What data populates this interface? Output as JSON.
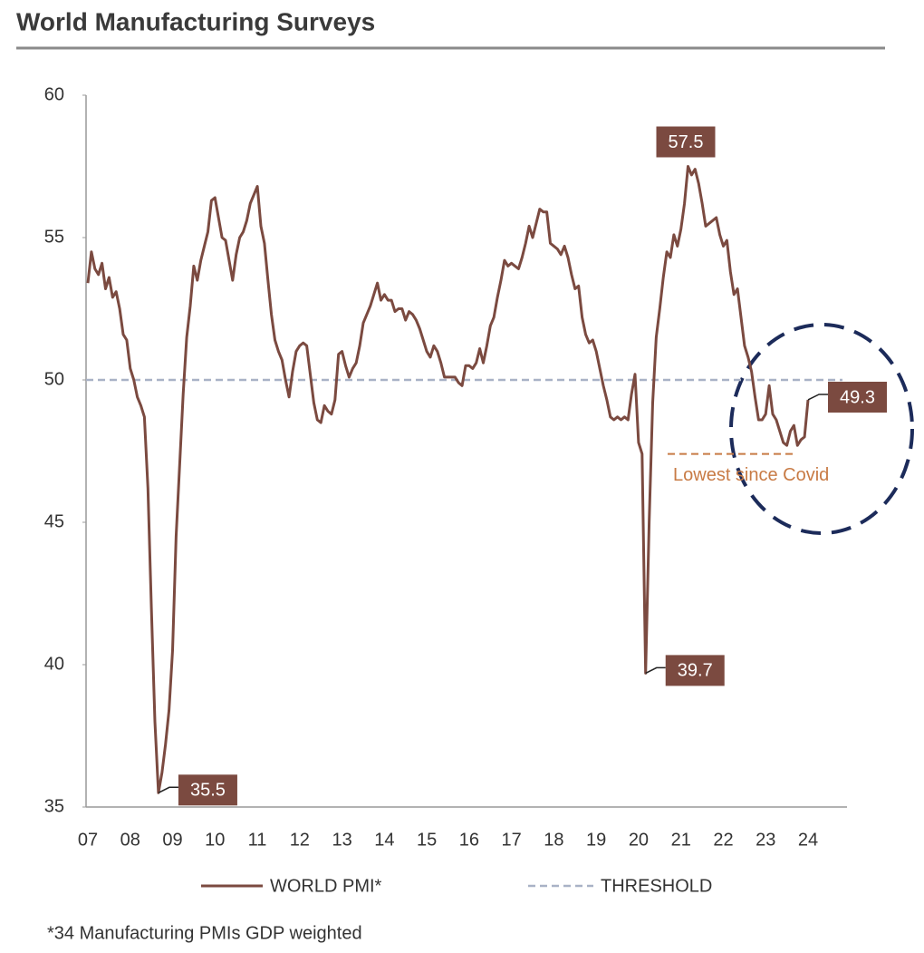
{
  "chart_data": {
    "type": "line",
    "title": "World Manufacturing Surveys",
    "footnote": "*34 Manufacturing PMIs GDP weighted",
    "categories": [
      "07",
      null,
      null,
      null,
      null,
      null,
      null,
      null,
      null,
      null,
      null,
      null,
      "08",
      null,
      null,
      null,
      null,
      null,
      null,
      null,
      null,
      null,
      null,
      null,
      "09",
      null,
      null,
      null,
      null,
      null,
      null,
      null,
      null,
      null,
      null,
      null,
      "10",
      null,
      null,
      null,
      null,
      null,
      null,
      null,
      null,
      null,
      null,
      null,
      "11",
      null,
      null,
      null,
      null,
      null,
      null,
      null,
      null,
      null,
      null,
      null,
      "12",
      null,
      null,
      null,
      null,
      null,
      null,
      null,
      null,
      null,
      null,
      null,
      "13",
      null,
      null,
      null,
      null,
      null,
      null,
      null,
      null,
      null,
      null,
      null,
      "14",
      null,
      null,
      null,
      null,
      null,
      null,
      null,
      null,
      null,
      null,
      null,
      "15",
      null,
      null,
      null,
      null,
      null,
      null,
      null,
      null,
      null,
      null,
      null,
      "16",
      null,
      null,
      null,
      null,
      null,
      null,
      null,
      null,
      null,
      null,
      null,
      "17",
      null,
      null,
      null,
      null,
      null,
      null,
      null,
      null,
      null,
      null,
      null,
      "18",
      null,
      null,
      null,
      null,
      null,
      null,
      null,
      null,
      null,
      null,
      null,
      "19",
      null,
      null,
      null,
      null,
      null,
      null,
      null,
      null,
      null,
      null,
      null,
      "20",
      null,
      null,
      null,
      null,
      null,
      null,
      null,
      null,
      null,
      null,
      null,
      "21",
      null,
      null,
      null,
      null,
      null,
      null,
      null,
      null,
      null,
      null,
      null,
      "22",
      null,
      null,
      null,
      null,
      null,
      null,
      null,
      null,
      null,
      null,
      null,
      "23",
      null,
      null,
      null,
      null,
      null,
      null,
      null,
      null,
      null,
      null,
      null,
      "24"
    ],
    "series": [
      {
        "name": "WORLD PMI*",
        "color": "#7b4a40",
        "values": [
          53.4,
          54.5,
          53.9,
          53.7,
          54.1,
          53.2,
          53.6,
          52.9,
          53.1,
          52.5,
          51.6,
          51.4,
          50.4,
          50.0,
          49.4,
          49.1,
          48.7,
          46.2,
          42.0,
          38.0,
          35.5,
          36.2,
          37.2,
          38.4,
          40.5,
          44.5,
          47.0,
          49.5,
          51.5,
          52.6,
          54.0,
          53.5,
          54.2,
          54.7,
          55.2,
          56.3,
          56.4,
          55.7,
          55.0,
          54.9,
          54.2,
          53.5,
          54.4,
          55.0,
          55.2,
          55.6,
          56.2,
          56.5,
          56.8,
          55.4,
          54.8,
          53.5,
          52.3,
          51.4,
          51.0,
          50.7,
          50.0,
          49.4,
          50.3,
          51.0,
          51.2,
          51.3,
          51.2,
          50.2,
          49.2,
          48.6,
          48.5,
          49.1,
          48.9,
          48.8,
          49.3,
          50.9,
          51.0,
          50.5,
          50.1,
          50.4,
          50.6,
          51.2,
          52.0,
          52.3,
          52.6,
          53.0,
          53.4,
          52.8,
          53.0,
          52.8,
          52.8,
          52.4,
          52.5,
          52.5,
          52.1,
          52.4,
          52.3,
          52.1,
          51.8,
          51.4,
          51.0,
          50.8,
          51.2,
          51.0,
          50.6,
          50.1,
          50.1,
          50.1,
          50.1,
          49.9,
          49.8,
          50.5,
          50.5,
          50.4,
          50.6,
          51.1,
          50.6,
          51.2,
          51.9,
          52.2,
          52.9,
          53.5,
          54.2,
          54.0,
          54.1,
          54.0,
          53.9,
          54.3,
          54.8,
          55.4,
          55.0,
          55.5,
          56.0,
          55.9,
          55.9,
          54.8,
          54.7,
          54.6,
          54.4,
          54.7,
          54.3,
          53.7,
          53.2,
          53.3,
          52.2,
          51.6,
          51.3,
          51.4,
          51.0,
          50.4,
          49.8,
          49.3,
          48.7,
          48.6,
          48.7,
          48.6,
          48.7,
          48.6,
          49.5,
          50.2,
          47.8,
          47.4,
          39.7,
          45.0,
          49.2,
          51.5,
          52.5,
          53.6,
          54.5,
          54.3,
          55.1,
          54.7,
          55.3,
          56.2,
          57.5,
          57.2,
          57.4,
          56.9,
          56.2,
          55.4,
          55.5,
          55.6,
          55.7,
          55.1,
          54.7,
          54.9,
          53.8,
          53.0,
          53.2,
          52.2,
          51.2,
          50.8,
          50.3,
          49.4,
          48.6,
          48.6,
          48.8,
          49.8,
          48.8,
          48.6,
          48.2,
          47.8,
          47.7,
          48.2,
          48.4,
          47.7,
          47.9,
          48.0,
          49.3
        ],
        "value_labels": [
          null,
          null,
          null,
          null,
          null,
          null,
          null,
          null,
          null,
          null,
          null,
          null,
          null,
          null,
          null,
          null,
          null,
          null,
          null,
          null,
          "35.5",
          null,
          null,
          null,
          null,
          null,
          null,
          null,
          null,
          null,
          null,
          null,
          null,
          null,
          null,
          null,
          null,
          null,
          null,
          null,
          null,
          null,
          null,
          null,
          null,
          null,
          null,
          null,
          null,
          null,
          null,
          null,
          null,
          null,
          null,
          null,
          null,
          null,
          null,
          null,
          null,
          null,
          null,
          null,
          null,
          null,
          null,
          null,
          null,
          null,
          null,
          null,
          null,
          null,
          null,
          null,
          null,
          null,
          null,
          null,
          null,
          null,
          null,
          null,
          null,
          null,
          null,
          null,
          null,
          null,
          null,
          null,
          null,
          null,
          null,
          null,
          null,
          null,
          null,
          null,
          null,
          null,
          null,
          null,
          null,
          null,
          null,
          null,
          null,
          null,
          null,
          null,
          null,
          null,
          null,
          null,
          null,
          null,
          null,
          null,
          null,
          null,
          null,
          null,
          null,
          null,
          null,
          null,
          null,
          null,
          null,
          null,
          null,
          null,
          null,
          null,
          null,
          null,
          null,
          null,
          null,
          null,
          null,
          null,
          null,
          null,
          null,
          null,
          null,
          null,
          null,
          null,
          null,
          null,
          null,
          null,
          null,
          null,
          "39.7",
          null,
          null,
          null,
          null,
          null,
          null,
          null,
          null,
          null,
          null,
          null,
          "57.5",
          null,
          null,
          null,
          null,
          null,
          null,
          null,
          null,
          null,
          null,
          null,
          null,
          null,
          null,
          null,
          null,
          null,
          null,
          null,
          null,
          null,
          null,
          null,
          null,
          null,
          null,
          null,
          null,
          null,
          null,
          null,
          null,
          null,
          "49.3"
        ]
      }
    ],
    "threshold": {
      "name": "THRESHOLD",
      "value": 50,
      "color": "#a9b2c6"
    },
    "annotation": {
      "text": "Lowest since Covid",
      "y": 47.4,
      "color": "#c87b45"
    },
    "ylim": [
      35,
      60
    ],
    "yticks": [
      35,
      40,
      45,
      50,
      55,
      60
    ]
  }
}
